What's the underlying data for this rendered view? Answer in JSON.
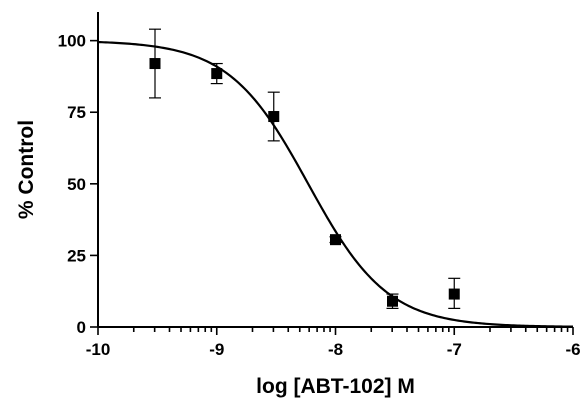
{
  "chart_data": {
    "type": "scatter",
    "title": "",
    "xlabel": "log [ABT-102] M",
    "ylabel": "% Control",
    "xlim": [
      -10,
      -6
    ],
    "ylim": [
      0,
      110
    ],
    "x_ticks": [
      -10,
      -9,
      -8,
      -7,
      -6
    ],
    "y_ticks": [
      0,
      25,
      50,
      75,
      100
    ],
    "x_tick_labels": [
      "-10",
      "-9",
      "-8",
      "-7",
      "-6"
    ],
    "y_tick_labels": [
      "0",
      "25",
      "50",
      "75",
      "100"
    ],
    "x_minor_ticks": "log-spaced within each decade",
    "grid": false,
    "legend": "none",
    "series": [
      {
        "points": [
          {
            "x": -9.52,
            "y": 92,
            "err_low": 80,
            "err_high": 104
          },
          {
            "x": -9.0,
            "y": 88.5,
            "err_low": 85,
            "err_high": 92
          },
          {
            "x": -8.52,
            "y": 73.5,
            "err_low": 65,
            "err_high": 82
          },
          {
            "x": -8.0,
            "y": 30.5,
            "err_low": 29.5,
            "err_high": 31.5
          },
          {
            "x": -7.52,
            "y": 9,
            "err_low": 6.5,
            "err_high": 11.5
          },
          {
            "x": -7.0,
            "y": 11.5,
            "err_low": 6.5,
            "err_high": 17
          }
        ]
      }
    ],
    "fit_curve": {
      "model": "sigmoidal dose-response",
      "top": 100,
      "bottom": 0,
      "log_ic50": -8.23,
      "hill_slope": -1.3
    }
  }
}
